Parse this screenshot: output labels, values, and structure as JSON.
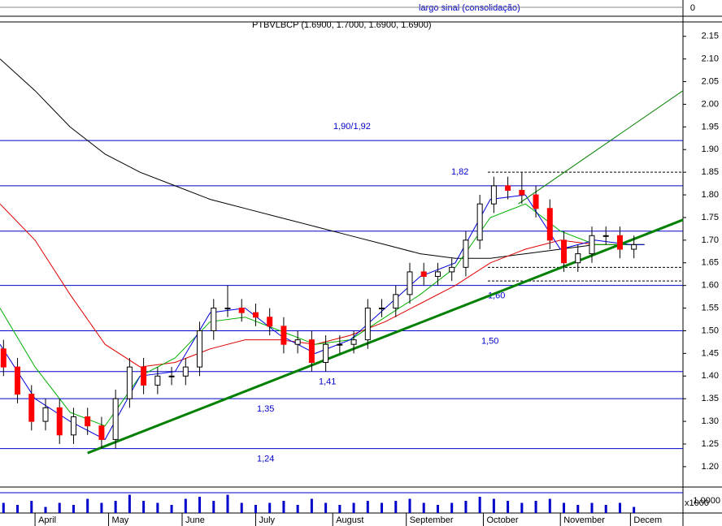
{
  "chart_data": {
    "type": "candlestick",
    "title": "PTBVLBCP (1.6900, 1.7000, 1.6900, 1.6900)",
    "subtitle": "largo sinal (consolidação)",
    "x": [
      -9,
      -5,
      -1,
      3,
      7,
      11,
      15,
      19,
      23,
      27,
      31,
      35,
      39,
      43,
      47,
      51,
      55,
      59,
      63,
      67,
      71,
      75,
      79,
      83,
      87,
      91,
      95,
      99,
      103,
      107,
      111,
      115,
      119,
      123,
      127,
      131,
      135,
      139,
      143,
      147,
      151,
      155,
      159,
      163,
      167,
      171
    ],
    "open": [
      1.46,
      1.42,
      1.36,
      1.3,
      1.33,
      1.27,
      1.31,
      1.29,
      1.26,
      1.35,
      1.42,
      1.38,
      1.4,
      1.4,
      1.42,
      1.5,
      1.55,
      1.55,
      1.54,
      1.53,
      1.51,
      1.47,
      1.48,
      1.43,
      1.47,
      1.47,
      1.48,
      1.55,
      1.55,
      1.58,
      1.63,
      1.62,
      1.63,
      1.64,
      1.7,
      1.78,
      1.82,
      1.81,
      1.8,
      1.77,
      1.7,
      1.65,
      1.67,
      1.71,
      1.71,
      1.68
    ],
    "high": [
      1.48,
      1.44,
      1.38,
      1.35,
      1.35,
      1.33,
      1.33,
      1.31,
      1.37,
      1.44,
      1.44,
      1.42,
      1.42,
      1.44,
      1.52,
      1.57,
      1.6,
      1.57,
      1.56,
      1.55,
      1.53,
      1.5,
      1.5,
      1.49,
      1.49,
      1.5,
      1.57,
      1.57,
      1.6,
      1.65,
      1.65,
      1.65,
      1.66,
      1.72,
      1.8,
      1.84,
      1.84,
      1.85,
      1.82,
      1.79,
      1.72,
      1.69,
      1.73,
      1.73,
      1.73,
      1.71
    ],
    "low": [
      1.4,
      1.34,
      1.28,
      1.28,
      1.25,
      1.25,
      1.27,
      1.24,
      1.24,
      1.33,
      1.36,
      1.36,
      1.38,
      1.38,
      1.4,
      1.48,
      1.53,
      1.52,
      1.51,
      1.49,
      1.45,
      1.45,
      1.41,
      1.41,
      1.45,
      1.45,
      1.46,
      1.53,
      1.53,
      1.56,
      1.6,
      1.6,
      1.61,
      1.62,
      1.68,
      1.76,
      1.79,
      1.78,
      1.75,
      1.68,
      1.63,
      1.63,
      1.65,
      1.69,
      1.66,
      1.66
    ],
    "close": [
      1.42,
      1.36,
      1.3,
      1.33,
      1.27,
      1.31,
      1.29,
      1.26,
      1.35,
      1.42,
      1.38,
      1.4,
      1.4,
      1.42,
      1.5,
      1.55,
      1.55,
      1.54,
      1.53,
      1.51,
      1.47,
      1.48,
      1.43,
      1.47,
      1.47,
      1.48,
      1.55,
      1.55,
      1.58,
      1.63,
      1.62,
      1.63,
      1.64,
      1.7,
      1.78,
      1.82,
      1.81,
      1.8,
      1.77,
      1.7,
      1.65,
      1.67,
      1.71,
      1.71,
      1.68,
      1.69
    ],
    "up_color": "#ffffff",
    "down_color": "#ff0000",
    "volume": [
      0.5,
      0.4,
      0.6,
      0.3,
      0.5,
      0.4,
      0.7,
      0.5,
      0.6,
      0.9,
      0.6,
      0.5,
      0.4,
      0.7,
      0.8,
      0.6,
      0.9,
      0.5,
      0.4,
      0.5,
      0.6,
      0.4,
      0.7,
      0.5,
      0.4,
      0.5,
      0.6,
      0.5,
      0.6,
      0.7,
      0.5,
      0.4,
      0.5,
      0.6,
      0.8,
      0.7,
      0.6,
      0.5,
      0.6,
      0.7,
      0.5,
      0.4,
      0.5,
      0.4,
      0.5,
      0.3
    ],
    "volume_color": "#0000cc",
    "volume_ylim": [
      0,
      1.2
    ],
    "volume_yticks": [
      {
        "value": 1.0,
        "label": "1.0000"
      }
    ],
    "volume_unit": "x1000",
    "macd_yticks": [
      0
    ],
    "lines": [
      {
        "color": "#000000",
        "x": [
          -10,
          0,
          10,
          20,
          30,
          40,
          50,
          60,
          70,
          80,
          90,
          100,
          110,
          120,
          130,
          140,
          150,
          160,
          170,
          174
        ],
        "values": [
          2.1,
          2.03,
          1.95,
          1.89,
          1.85,
          1.82,
          1.79,
          1.77,
          1.75,
          1.73,
          1.71,
          1.69,
          1.67,
          1.66,
          1.66,
          1.67,
          1.68,
          1.69,
          1.69,
          1.69
        ]
      },
      {
        "color": "#e00000",
        "x": [
          -10,
          0,
          10,
          20,
          30,
          40,
          50,
          60,
          70,
          80,
          90,
          100,
          110,
          120,
          130,
          140,
          150,
          160,
          170,
          174
        ],
        "values": [
          1.78,
          1.7,
          1.58,
          1.47,
          1.42,
          1.43,
          1.46,
          1.48,
          1.48,
          1.47,
          1.49,
          1.52,
          1.56,
          1.6,
          1.65,
          1.68,
          1.7,
          1.69,
          1.69,
          1.69
        ]
      },
      {
        "color": "#00b000",
        "x": [
          -10,
          0,
          10,
          20,
          30,
          40,
          50,
          60,
          70,
          80,
          90,
          100,
          110,
          120,
          130,
          140,
          150,
          160,
          170,
          174
        ],
        "values": [
          1.55,
          1.42,
          1.32,
          1.29,
          1.4,
          1.44,
          1.52,
          1.53,
          1.5,
          1.47,
          1.48,
          1.53,
          1.58,
          1.64,
          1.75,
          1.78,
          1.72,
          1.69,
          1.69,
          1.69
        ]
      },
      {
        "color": "#0000dd",
        "x": [
          -10,
          0,
          10,
          20,
          30,
          40,
          50,
          60,
          70,
          80,
          90,
          100,
          110,
          120,
          130,
          140,
          150,
          160,
          170,
          174
        ],
        "values": [
          1.47,
          1.35,
          1.3,
          1.26,
          1.4,
          1.41,
          1.54,
          1.55,
          1.49,
          1.45,
          1.48,
          1.55,
          1.62,
          1.65,
          1.79,
          1.8,
          1.68,
          1.7,
          1.69,
          1.69
        ]
      }
    ],
    "trendlines": [
      {
        "color": "#008000",
        "width": 3,
        "x": [
          15,
          185
        ],
        "values": [
          1.23,
          1.745
        ]
      },
      {
        "color": "#008000",
        "width": 1,
        "x": [
          138,
          185
        ],
        "values": [
          1.78,
          2.03
        ]
      }
    ],
    "levels": [
      {
        "value": 1.92,
        "label": "1,90/1,92"
      },
      {
        "value": 1.85,
        "dashed": true
      },
      {
        "value": 1.82,
        "label": "1,82"
      },
      {
        "value": 1.72
      },
      {
        "value": 1.64,
        "dashed": true
      },
      {
        "value": 1.61,
        "dashed": true
      },
      {
        "value": 1.6,
        "label": "1,60"
      },
      {
        "value": 1.5,
        "label": "1,50"
      },
      {
        "value": 1.41,
        "label": "1,41"
      },
      {
        "value": 1.35,
        "label": "1,35"
      },
      {
        "value": 1.24,
        "label": "1,24"
      }
    ],
    "level_color": "#0000cc",
    "xlim": [
      -10,
      185
    ],
    "xticks": [
      {
        "value": 0,
        "label": "April"
      },
      {
        "value": 21,
        "label": "May"
      },
      {
        "value": 42,
        "label": "June"
      },
      {
        "value": 63,
        "label": "July"
      },
      {
        "value": 85,
        "label": "August"
      },
      {
        "value": 106,
        "label": "September"
      },
      {
        "value": 128,
        "label": "October"
      },
      {
        "value": 150,
        "label": "November"
      },
      {
        "value": 170,
        "label": "Decem"
      }
    ],
    "ylim": [
      1.155,
      2.18
    ],
    "yticks": [
      {
        "value": 1.2,
        "label": "1.20"
      },
      {
        "value": 1.25,
        "label": "1.25"
      },
      {
        "value": 1.3,
        "label": "1.30"
      },
      {
        "value": 1.35,
        "label": "1.35"
      },
      {
        "value": 1.4,
        "label": "1.40"
      },
      {
        "value": 1.45,
        "label": "1.45"
      },
      {
        "value": 1.5,
        "label": "1.50"
      },
      {
        "value": 1.55,
        "label": "1.55"
      },
      {
        "value": 1.6,
        "label": "1.60"
      },
      {
        "value": 1.65,
        "label": "1.65"
      },
      {
        "value": 1.7,
        "label": "1.70"
      },
      {
        "value": 1.75,
        "label": "1.75"
      },
      {
        "value": 1.8,
        "label": "1.80"
      },
      {
        "value": 1.85,
        "label": "1.85"
      },
      {
        "value": 1.9,
        "label": "1.90"
      },
      {
        "value": 1.95,
        "label": "1.95"
      },
      {
        "value": 2.0,
        "label": "2.00"
      },
      {
        "value": 2.05,
        "label": "2.05"
      },
      {
        "value": 2.1,
        "label": "2.10"
      },
      {
        "value": 2.15,
        "label": "2.15"
      }
    ]
  }
}
